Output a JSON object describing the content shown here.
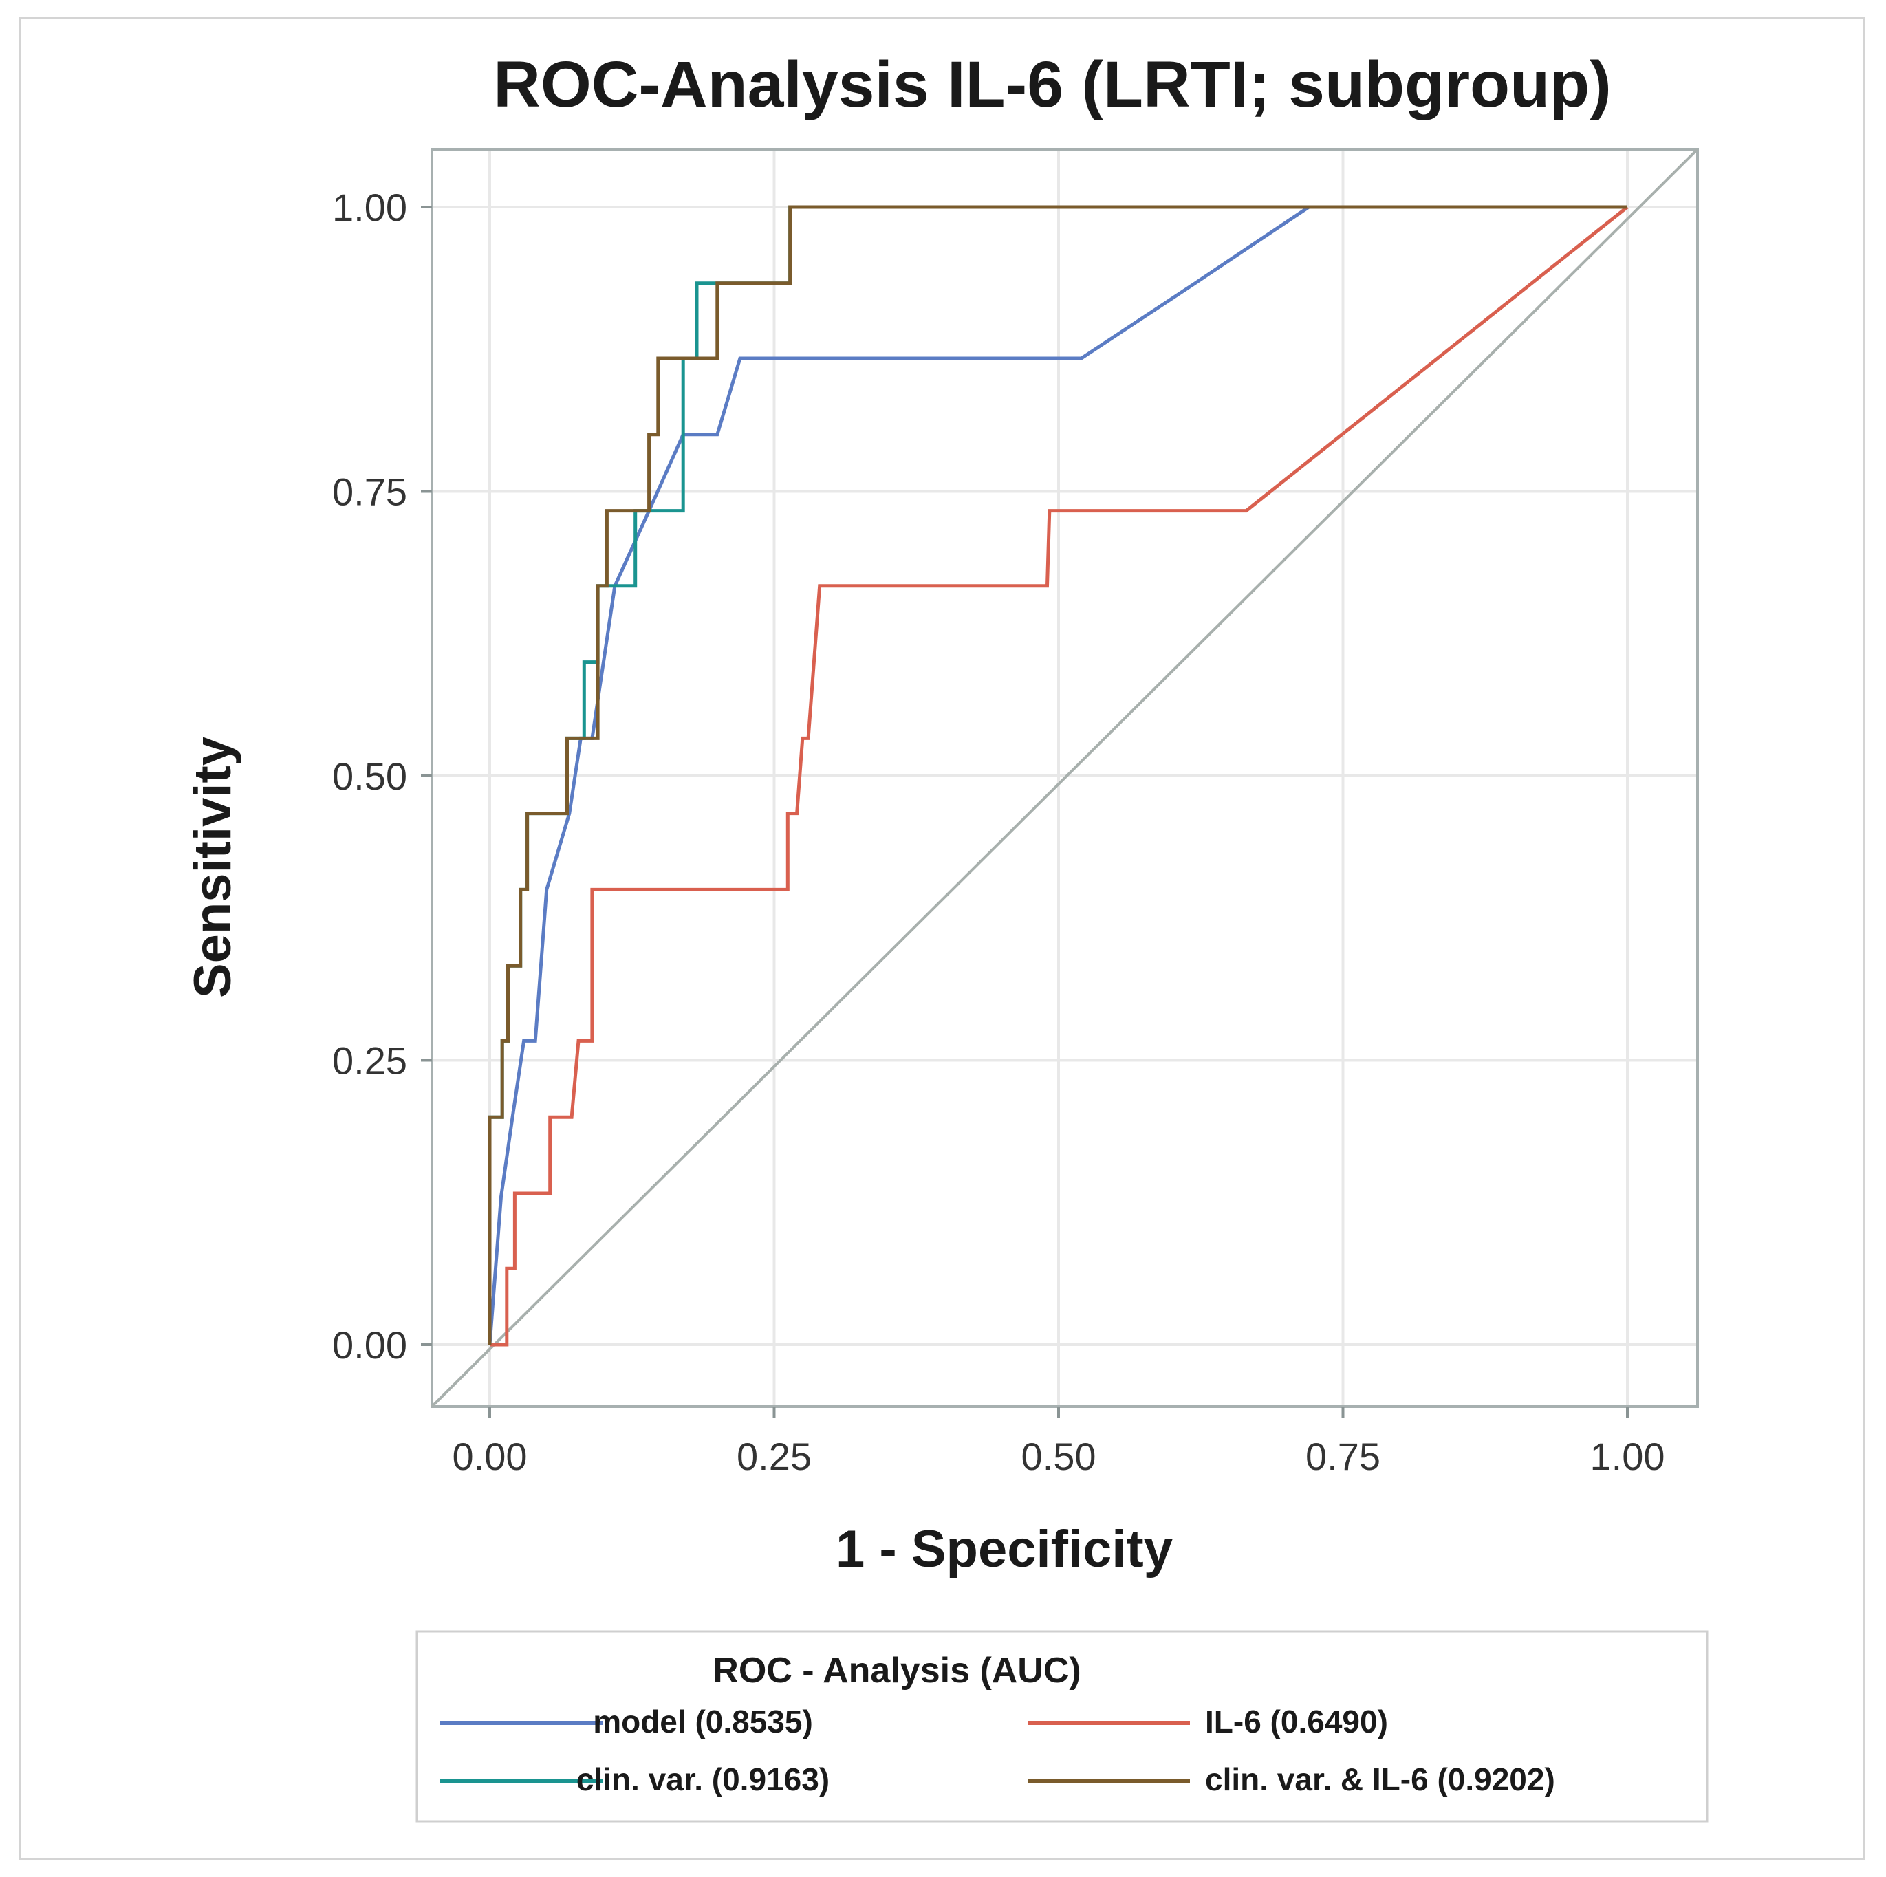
{
  "chart_data": {
    "type": "line",
    "title": "ROC-Analysis IL-6 (LRTI; subgroup)",
    "xlabel": "1 - Specificity",
    "ylabel": "Sensitivity",
    "xlim": [
      -0.05,
      1.05
    ],
    "ylim": [
      -0.05,
      1.05
    ],
    "xticks": [
      "0.00",
      "0.25",
      "0.50",
      "0.75",
      "1.00"
    ],
    "yticks": [
      "0.00",
      "0.25",
      "0.50",
      "0.75",
      "1.00"
    ],
    "grid": true,
    "diagonal_reference": true,
    "legend": {
      "title": "ROC - Analysis (AUC)",
      "placement": "bottom"
    },
    "series": [
      {
        "name": "model (0.8535)",
        "color": "#5b7cc4",
        "points": [
          [
            0,
            0
          ],
          [
            0.01,
            0.13
          ],
          [
            0.02,
            0.2
          ],
          [
            0.03,
            0.267
          ],
          [
            0.04,
            0.267
          ],
          [
            0.05,
            0.4
          ],
          [
            0.07,
            0.467
          ],
          [
            0.08,
            0.533
          ],
          [
            0.09,
            0.533
          ],
          [
            0.11,
            0.667
          ],
          [
            0.14,
            0.733
          ],
          [
            0.17,
            0.8
          ],
          [
            0.2,
            0.8
          ],
          [
            0.22,
            0.867
          ],
          [
            0.52,
            0.867
          ],
          [
            0.62,
            0.933
          ],
          [
            0.72,
            1.0
          ],
          [
            1.0,
            1.0
          ]
        ]
      },
      {
        "name": "IL-6 (0.6490)",
        "color": "#d9604f",
        "points": [
          [
            0,
            0
          ],
          [
            0.015,
            0
          ],
          [
            0.015,
            0.067
          ],
          [
            0.022,
            0.067
          ],
          [
            0.022,
            0.133
          ],
          [
            0.053,
            0.133
          ],
          [
            0.053,
            0.2
          ],
          [
            0.072,
            0.2
          ],
          [
            0.078,
            0.267
          ],
          [
            0.09,
            0.267
          ],
          [
            0.09,
            0.4
          ],
          [
            0.262,
            0.4
          ],
          [
            0.262,
            0.467
          ],
          [
            0.27,
            0.467
          ],
          [
            0.275,
            0.533
          ],
          [
            0.28,
            0.533
          ],
          [
            0.285,
            0.6
          ],
          [
            0.29,
            0.667
          ],
          [
            0.49,
            0.667
          ],
          [
            0.492,
            0.733
          ],
          [
            0.665,
            0.733
          ],
          [
            1.0,
            1.0
          ]
        ]
      },
      {
        "name": "clin. var. (0.9163)",
        "color": "#1a9490",
        "points": [
          [
            0,
            0
          ],
          [
            0,
            0.2
          ],
          [
            0.011,
            0.2
          ],
          [
            0.011,
            0.267
          ],
          [
            0.016,
            0.267
          ],
          [
            0.016,
            0.333
          ],
          [
            0.027,
            0.333
          ],
          [
            0.027,
            0.4
          ],
          [
            0.033,
            0.4
          ],
          [
            0.033,
            0.467
          ],
          [
            0.068,
            0.467
          ],
          [
            0.068,
            0.533
          ],
          [
            0.083,
            0.533
          ],
          [
            0.083,
            0.6
          ],
          [
            0.095,
            0.6
          ],
          [
            0.095,
            0.667
          ],
          [
            0.128,
            0.667
          ],
          [
            0.128,
            0.733
          ],
          [
            0.17,
            0.733
          ],
          [
            0.17,
            0.867
          ],
          [
            0.182,
            0.867
          ],
          [
            0.182,
            0.933
          ],
          [
            0.264,
            0.933
          ],
          [
            0.264,
            1.0
          ],
          [
            1.0,
            1.0
          ]
        ]
      },
      {
        "name": "clin. var. & IL-6 (0.9202)",
        "color": "#7a5b2c",
        "points": [
          [
            0,
            0
          ],
          [
            0,
            0.2
          ],
          [
            0.011,
            0.2
          ],
          [
            0.011,
            0.267
          ],
          [
            0.016,
            0.267
          ],
          [
            0.016,
            0.333
          ],
          [
            0.027,
            0.333
          ],
          [
            0.027,
            0.4
          ],
          [
            0.033,
            0.4
          ],
          [
            0.033,
            0.467
          ],
          [
            0.068,
            0.467
          ],
          [
            0.068,
            0.533
          ],
          [
            0.095,
            0.533
          ],
          [
            0.095,
            0.667
          ],
          [
            0.103,
            0.667
          ],
          [
            0.103,
            0.733
          ],
          [
            0.14,
            0.733
          ],
          [
            0.14,
            0.8
          ],
          [
            0.148,
            0.8
          ],
          [
            0.148,
            0.867
          ],
          [
            0.2,
            0.867
          ],
          [
            0.2,
            0.933
          ],
          [
            0.264,
            0.933
          ],
          [
            0.264,
            1.0
          ],
          [
            1.0,
            1.0
          ]
        ]
      }
    ]
  }
}
